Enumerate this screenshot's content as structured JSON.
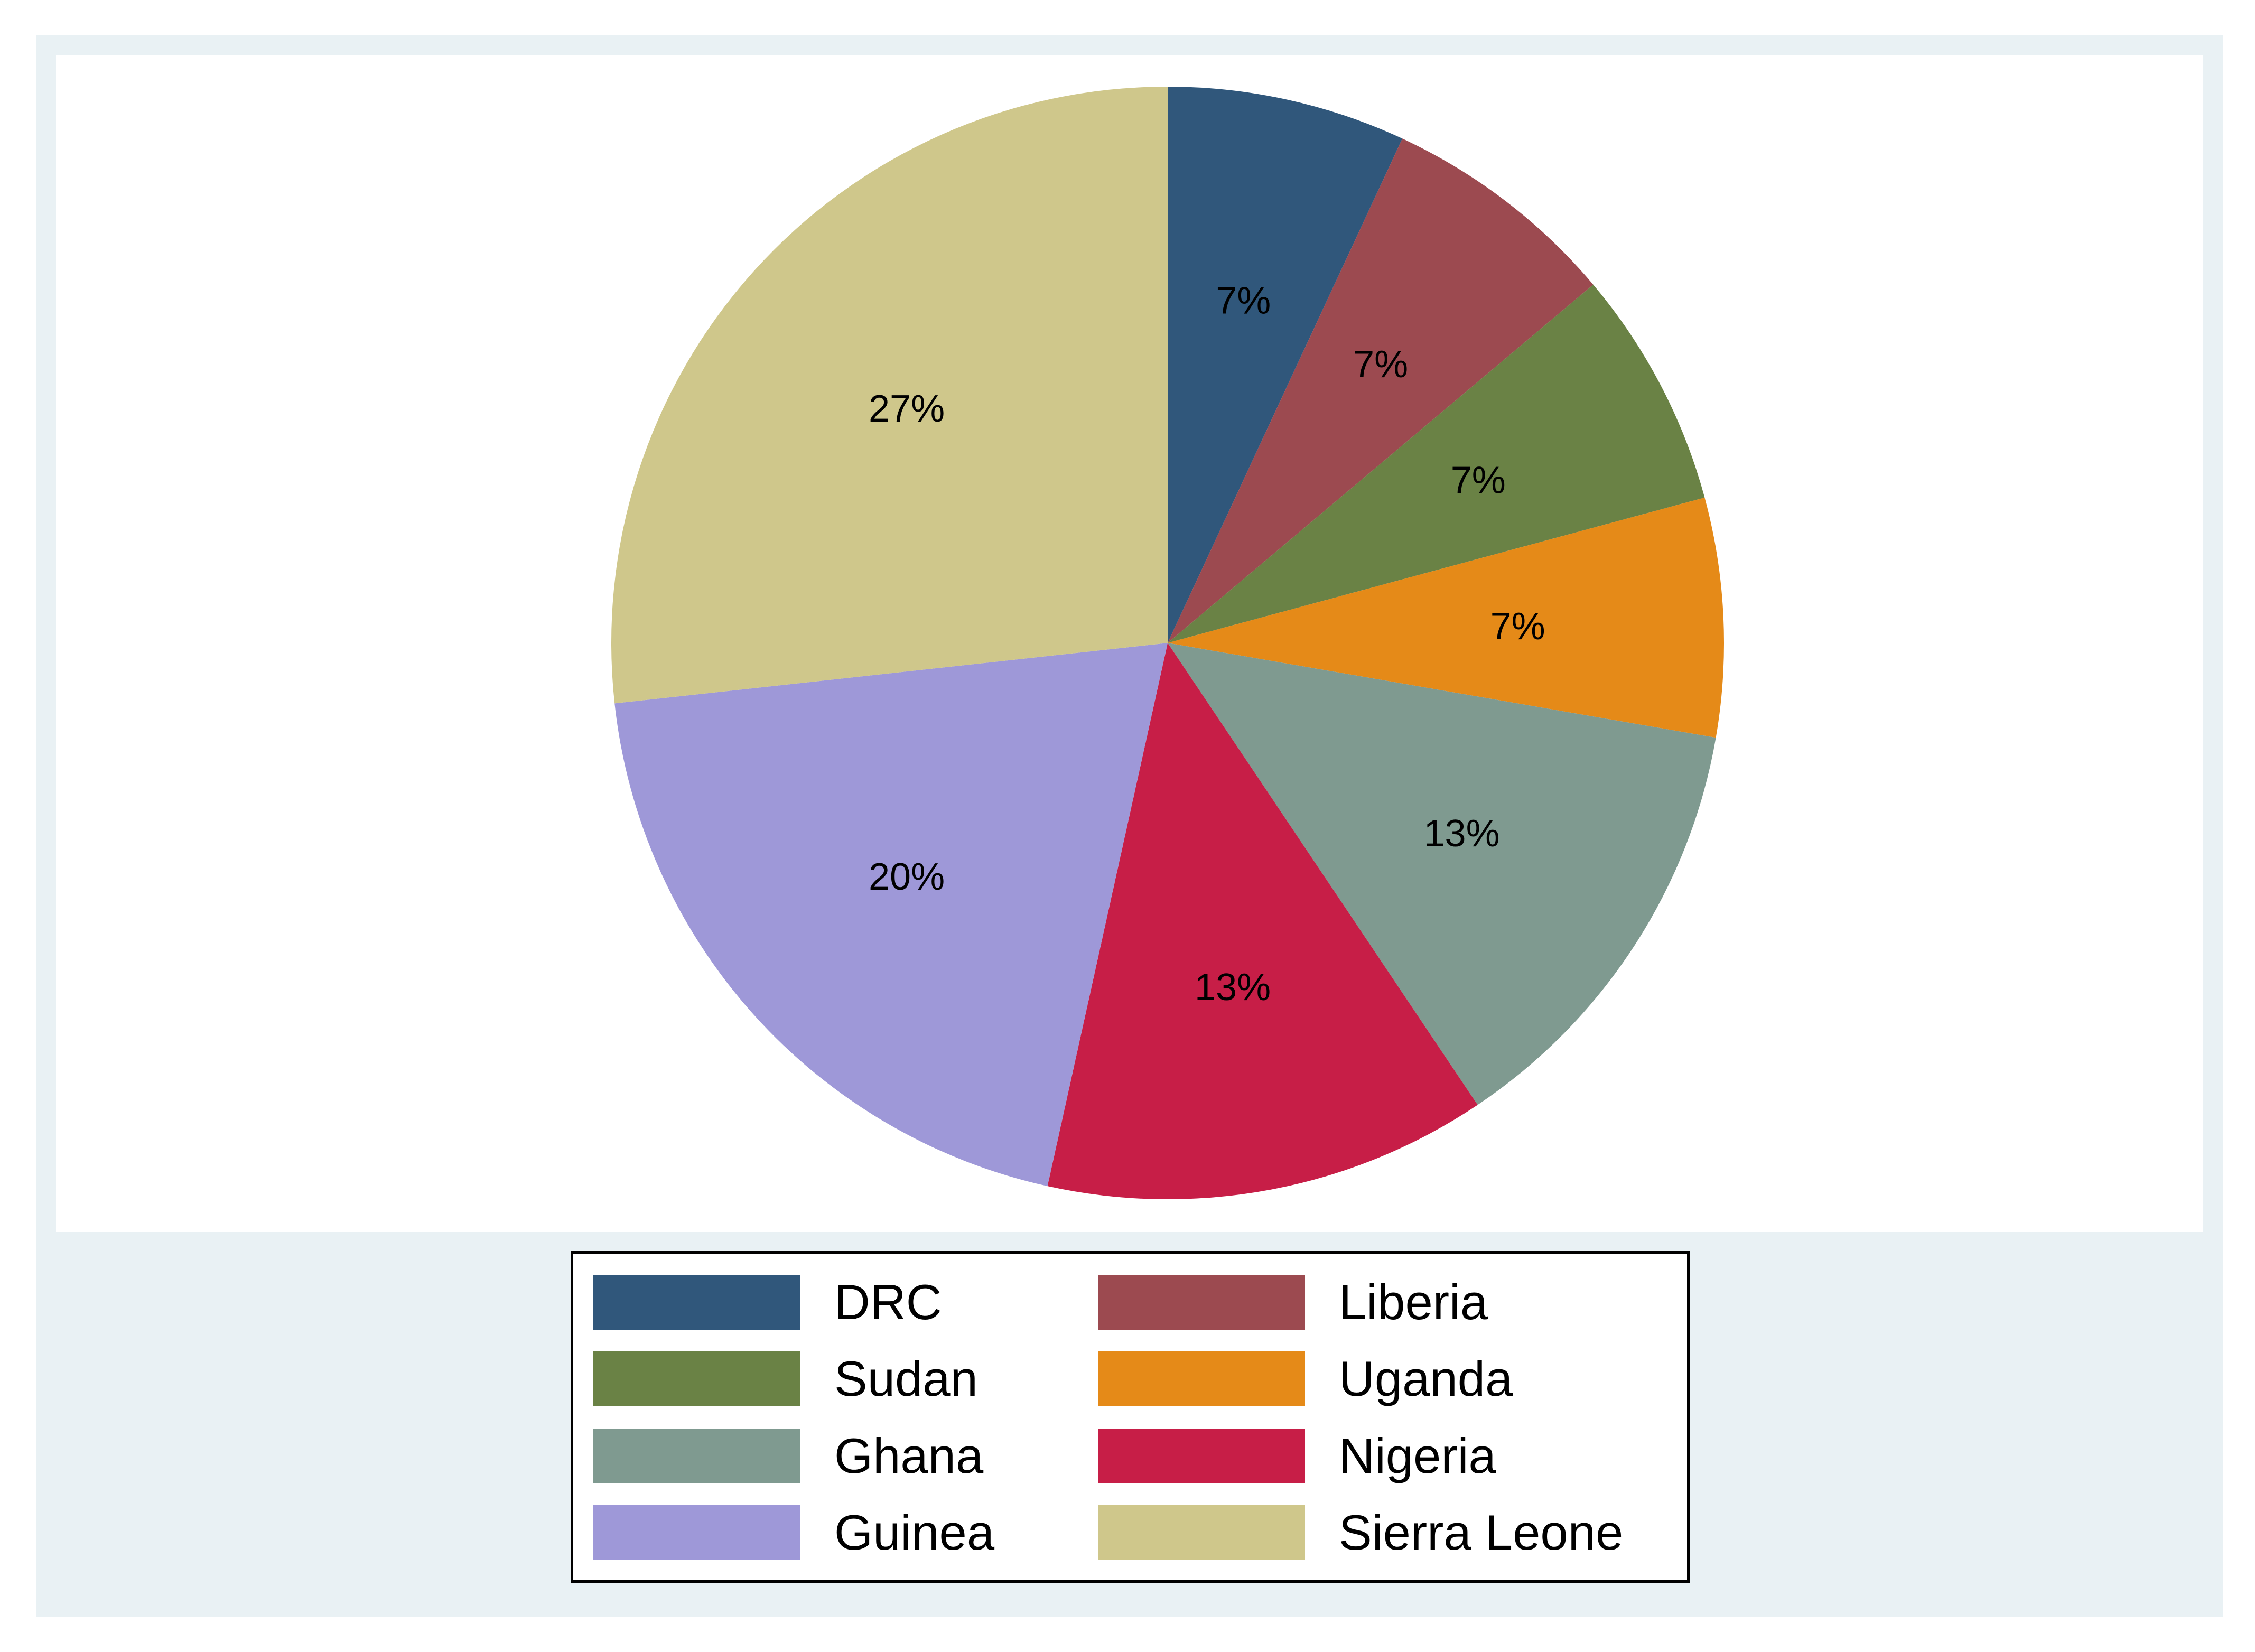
{
  "chart_data": {
    "type": "pie",
    "start_angle_deg": 90,
    "direction": "clockwise",
    "legend_position": "bottom",
    "slices": [
      {
        "label": "DRC",
        "value": 7,
        "display": "7%",
        "color": "#30577b"
      },
      {
        "label": "Liberia",
        "value": 7,
        "display": "7%",
        "color": "#9c4a50"
      },
      {
        "label": "Sudan",
        "value": 7,
        "display": "7%",
        "color": "#6a8245"
      },
      {
        "label": "Uganda",
        "value": 7,
        "display": "7%",
        "color": "#e58a18"
      },
      {
        "label": "Ghana",
        "value": 13,
        "display": "13%",
        "color": "#7f9a90"
      },
      {
        "label": "Nigeria",
        "value": 13,
        "display": "13%",
        "color": "#c71e47"
      },
      {
        "label": "Guinea",
        "value": 20,
        "display": "20%",
        "color": "#9e98d8"
      },
      {
        "label": "Sierra Leone",
        "value": 27,
        "display": "27%",
        "color": "#cfc78b"
      }
    ]
  }
}
